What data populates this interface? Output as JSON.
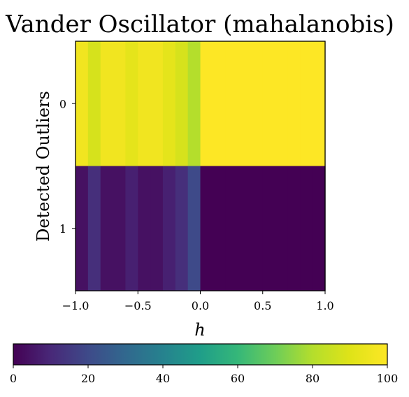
{
  "chart_data": {
    "type": "heatmap",
    "title": "Vander Oscillator (mahalanobis)",
    "xlabel": "h",
    "ylabel": "Detected Outliers",
    "x_range": [
      -1.0,
      1.0
    ],
    "x_ticks": [
      -1.0,
      -0.5,
      0.0,
      0.5,
      1.0
    ],
    "x_tick_labels": [
      "−1.0",
      "−0.5",
      "0.0",
      "0.5",
      "1.0"
    ],
    "y_categories": [
      "0",
      "1"
    ],
    "x_bins": [
      -1.0,
      -0.9,
      -0.8,
      -0.7,
      -0.6,
      -0.5,
      -0.4,
      -0.3,
      -0.2,
      -0.1,
      0.0,
      0.1,
      0.2,
      0.3,
      0.4,
      0.5,
      0.6,
      0.7,
      0.8,
      0.9
    ],
    "bin_width": 0.1,
    "values": [
      [
        96,
        88,
        96,
        96,
        92,
        96,
        96,
        92,
        88,
        80,
        100,
        100,
        100,
        100,
        100,
        100,
        100,
        100,
        100,
        100
      ],
      [
        4,
        12,
        4,
        4,
        8,
        4,
        4,
        8,
        12,
        20,
        0,
        0,
        0,
        0,
        0,
        0,
        0,
        0,
        0,
        0
      ]
    ],
    "colorbar": {
      "range": [
        0,
        100
      ],
      "ticks": [
        0,
        20,
        40,
        60,
        80,
        100
      ],
      "tick_labels": [
        "0",
        "20",
        "40",
        "60",
        "80",
        "100"
      ],
      "colormap": "viridis",
      "orientation": "horizontal"
    },
    "grid": false
  }
}
